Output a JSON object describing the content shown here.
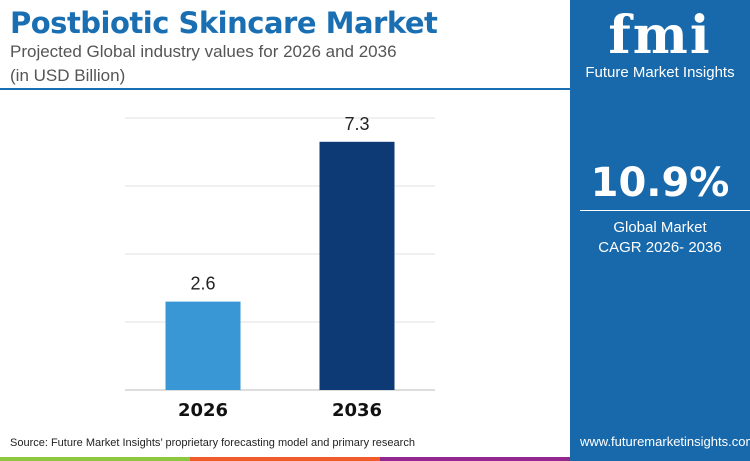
{
  "header": {
    "title": "Postbiotic Skincare Market",
    "subtitle": "Projected Global industry values for 2026 and 2036",
    "unit": "(in USD Billion)"
  },
  "panel": {
    "logo_text": "fmi",
    "brand": "Future Market Insights",
    "cagr": "10.9%",
    "cagr_label1": "Global Market",
    "cagr_label2": "CAGR 2026- 2036",
    "website": "www.futuremarketinsights.com"
  },
  "footer": {
    "source": "Source: Future Market Insights’ proprietary forecasting model and primary research"
  },
  "colors": {
    "bar_2026": "#3a97d6",
    "bar_2036": "#0d3a75",
    "brand": "#1769ab"
  },
  "chart_data": {
    "type": "bar",
    "categories": [
      "2026",
      "2036"
    ],
    "values": [
      2.6,
      7.3
    ],
    "data_labels": [
      "2.6",
      "7.3"
    ],
    "ylim": [
      0,
      8
    ],
    "grid": true,
    "title": "Postbiotic Skincare Market",
    "xlabel": "",
    "ylabel": ""
  }
}
